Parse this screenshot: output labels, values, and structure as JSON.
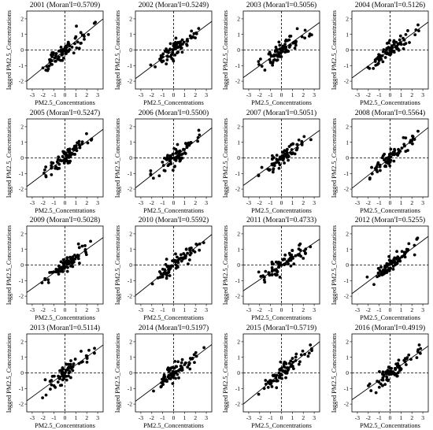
{
  "figure": {
    "xlabel": "PM2.5_Concentrations",
    "ylabel": "lagged PM2.5_Concentrations"
  },
  "chart_data": [
    {
      "type": "scatter",
      "title": "2001 (Moran'I=0.5709)",
      "year": 2001,
      "moran_i": 0.5709,
      "xlabel": "PM2.5_Concentrations",
      "ylabel": "lagged PM2.5_Concentrations",
      "xlim": [
        -3.5,
        3.5
      ],
      "ylim": [
        -2.5,
        2.5
      ],
      "xticks": [
        -3,
        -2,
        -1,
        0,
        1,
        2,
        3
      ],
      "yticks": [
        -2,
        -1,
        0,
        1,
        2
      ],
      "slope": 0.5709,
      "reference_lines": {
        "x": 0,
        "y": 0,
        "style": "dashed"
      },
      "seed": 11,
      "points_x": [],
      "points_y": []
    },
    {
      "type": "scatter",
      "title": "2002 (Moran'I=0.5249)",
      "year": 2002,
      "moran_i": 0.5249,
      "xlabel": "PM2.5_Concentrations",
      "ylabel": "lagged PM2.5_Concentrations",
      "xlim": [
        -3.5,
        3.5
      ],
      "ylim": [
        -2.5,
        2.5
      ],
      "xticks": [
        -3,
        -2,
        -1,
        0,
        1,
        2,
        3
      ],
      "yticks": [
        -2,
        -1,
        0,
        1,
        2
      ],
      "slope": 0.5249,
      "reference_lines": {
        "x": 0,
        "y": 0,
        "style": "dashed"
      },
      "seed": 23,
      "points_x": [],
      "points_y": []
    },
    {
      "type": "scatter",
      "title": "2003 (Moran'I=0.5056)",
      "year": 2003,
      "moran_i": 0.5056,
      "xlabel": "PM2.5_Concentrations",
      "ylabel": "lagged PM2.5_Concentrations",
      "xlim": [
        -3.5,
        3.5
      ],
      "ylim": [
        -2.5,
        2.5
      ],
      "xticks": [
        -3,
        -2,
        -1,
        0,
        1,
        2,
        3
      ],
      "yticks": [
        -2,
        -1,
        0,
        1,
        2
      ],
      "slope": 0.5056,
      "reference_lines": {
        "x": 0,
        "y": 0,
        "style": "dashed"
      },
      "seed": 37,
      "points_x": [],
      "points_y": []
    },
    {
      "type": "scatter",
      "title": "2004 (Moran'I=0.5126)",
      "year": 2004,
      "moran_i": 0.5126,
      "xlabel": "PM2.5_Concentrations",
      "ylabel": "lagged PM2.5_Concentrations",
      "xlim": [
        -3.5,
        3.5
      ],
      "ylim": [
        -2.5,
        2.5
      ],
      "xticks": [
        -3,
        -2,
        -1,
        0,
        1,
        2,
        3
      ],
      "yticks": [
        -2,
        -1,
        0,
        1,
        2
      ],
      "slope": 0.5126,
      "reference_lines": {
        "x": 0,
        "y": 0,
        "style": "dashed"
      },
      "seed": 41,
      "points_x": [],
      "points_y": []
    },
    {
      "type": "scatter",
      "title": "2005 (Moran'I=0.5247)",
      "year": 2005,
      "moran_i": 0.5247,
      "xlabel": "PM2.5_Concentrations",
      "ylabel": "lagged PM2.5_Concentrations",
      "xlim": [
        -3.5,
        3.5
      ],
      "ylim": [
        -2.5,
        2.5
      ],
      "xticks": [
        -3,
        -2,
        -1,
        0,
        1,
        2,
        3
      ],
      "yticks": [
        -2,
        -1,
        0,
        1,
        2
      ],
      "slope": 0.5247,
      "reference_lines": {
        "x": 0,
        "y": 0,
        "style": "dashed"
      },
      "seed": 53,
      "points_x": [],
      "points_y": []
    },
    {
      "type": "scatter",
      "title": "2006 (Moran'I=0.5500)",
      "year": 2006,
      "moran_i": 0.55,
      "xlabel": "PM2.5_Concentrations",
      "ylabel": "lagged PM2.5_Concentrations",
      "xlim": [
        -3.5,
        3.5
      ],
      "ylim": [
        -2.5,
        2.5
      ],
      "xticks": [
        -3,
        -2,
        -1,
        0,
        1,
        2,
        3
      ],
      "yticks": [
        -2,
        -1,
        0,
        1,
        2
      ],
      "slope": 0.55,
      "reference_lines": {
        "x": 0,
        "y": 0,
        "style": "dashed"
      },
      "seed": 67,
      "points_x": [],
      "points_y": []
    },
    {
      "type": "scatter",
      "title": "2007 (Moran'I=0.5051)",
      "year": 2007,
      "moran_i": 0.5051,
      "xlabel": "PM2.5_Concentrations",
      "ylabel": "lagged PM2.5_Concentrations",
      "xlim": [
        -3.5,
        3.5
      ],
      "ylim": [
        -2.5,
        2.5
      ],
      "xticks": [
        -3,
        -2,
        -1,
        0,
        1,
        2,
        3
      ],
      "yticks": [
        -2,
        -1,
        0,
        1,
        2
      ],
      "slope": 0.5051,
      "reference_lines": {
        "x": 0,
        "y": 0,
        "style": "dashed"
      },
      "seed": 71,
      "points_x": [],
      "points_y": []
    },
    {
      "type": "scatter",
      "title": "2008 (Moran'I=0.5564)",
      "year": 2008,
      "moran_i": 0.5564,
      "xlabel": "PM2.5_Concentrations",
      "ylabel": "lagged PM2.5_Concentrations",
      "xlim": [
        -3.5,
        3.5
      ],
      "ylim": [
        -2.5,
        2.5
      ],
      "xticks": [
        -3,
        -2,
        -1,
        0,
        1,
        2,
        3
      ],
      "yticks": [
        -2,
        -1,
        0,
        1,
        2
      ],
      "slope": 0.5564,
      "reference_lines": {
        "x": 0,
        "y": 0,
        "style": "dashed"
      },
      "seed": 83,
      "points_x": [],
      "points_y": []
    },
    {
      "type": "scatter",
      "title": "2009 (Moran'I=0.5028)",
      "year": 2009,
      "moran_i": 0.5028,
      "xlabel": "PM2.5_Concentrations",
      "ylabel": "lagged PM2.5_Concentrations",
      "xlim": [
        -3.5,
        3.5
      ],
      "ylim": [
        -2.5,
        2.5
      ],
      "xticks": [
        -3,
        -2,
        -1,
        0,
        1,
        2,
        3
      ],
      "yticks": [
        -2,
        -1,
        0,
        1,
        2
      ],
      "slope": 0.5028,
      "reference_lines": {
        "x": 0,
        "y": 0,
        "style": "dashed"
      },
      "seed": 97,
      "points_x": [],
      "points_y": []
    },
    {
      "type": "scatter",
      "title": "2010 (Moran'I=0.5592)",
      "year": 2010,
      "moran_i": 0.5592,
      "xlabel": "PM2.5_Concentrations",
      "ylabel": "lagged PM2.5_Concentrations",
      "xlim": [
        -3.5,
        3.5
      ],
      "ylim": [
        -2.5,
        2.5
      ],
      "xticks": [
        -3,
        -2,
        -1,
        0,
        1,
        2,
        3
      ],
      "yticks": [
        -2,
        -1,
        0,
        1,
        2
      ],
      "slope": 0.5592,
      "reference_lines": {
        "x": 0,
        "y": 0,
        "style": "dashed"
      },
      "seed": 101,
      "points_x": [],
      "points_y": []
    },
    {
      "type": "scatter",
      "title": "2011 (Moran'I=0.4733)",
      "year": 2011,
      "moran_i": 0.4733,
      "xlabel": "PM2.5_Concentrations",
      "ylabel": "lagged PM2.5_Concentrations",
      "xlim": [
        -3.5,
        3.5
      ],
      "ylim": [
        -2.5,
        2.5
      ],
      "xticks": [
        -3,
        -2,
        -1,
        0,
        1,
        2,
        3
      ],
      "yticks": [
        -2,
        -1,
        0,
        1,
        2
      ],
      "slope": 0.4733,
      "reference_lines": {
        "x": 0,
        "y": 0,
        "style": "dashed"
      },
      "seed": 113,
      "points_x": [],
      "points_y": []
    },
    {
      "type": "scatter",
      "title": "2012 (Moran'I=0.5255)",
      "year": 2012,
      "moran_i": 0.5255,
      "xlabel": "PM2.5_Concentrations",
      "ylabel": "lagged PM2.5_Concentrations",
      "xlim": [
        -3.5,
        3.5
      ],
      "ylim": [
        -2.5,
        2.5
      ],
      "xticks": [
        -3,
        -2,
        -1,
        0,
        1,
        2,
        3
      ],
      "yticks": [
        -2,
        -1,
        0,
        1,
        2
      ],
      "slope": 0.5255,
      "reference_lines": {
        "x": 0,
        "y": 0,
        "style": "dashed"
      },
      "seed": 127,
      "points_x": [],
      "points_y": []
    },
    {
      "type": "scatter",
      "title": "2013 (Moran'I=0.5114)",
      "year": 2013,
      "moran_i": 0.5114,
      "xlabel": "PM2.5_Concentrations",
      "ylabel": "lagged PM2.5_Concentrations",
      "xlim": [
        -3.5,
        3.5
      ],
      "ylim": [
        -2.5,
        2.5
      ],
      "xticks": [
        -3,
        -2,
        -1,
        0,
        1,
        2,
        3
      ],
      "yticks": [
        -2,
        -1,
        0,
        1,
        2
      ],
      "slope": 0.5114,
      "reference_lines": {
        "x": 0,
        "y": 0,
        "style": "dashed"
      },
      "seed": 131,
      "points_x": [],
      "points_y": []
    },
    {
      "type": "scatter",
      "title": "2014 (Moran'I=0.5197)",
      "year": 2014,
      "moran_i": 0.5197,
      "xlabel": "PM2.5_Concentrations",
      "ylabel": "lagged PM2.5_Concentrations",
      "xlim": [
        -3.5,
        3.5
      ],
      "ylim": [
        -2.5,
        2.5
      ],
      "xticks": [
        -3,
        -2,
        -1,
        0,
        1,
        2,
        3
      ],
      "yticks": [
        -2,
        -1,
        0,
        1,
        2
      ],
      "slope": 0.5197,
      "reference_lines": {
        "x": 0,
        "y": 0,
        "style": "dashed"
      },
      "seed": 139,
      "points_x": [],
      "points_y": []
    },
    {
      "type": "scatter",
      "title": "2015 (Moran'I=0.5719)",
      "year": 2015,
      "moran_i": 0.5719,
      "xlabel": "PM2.5_Concentrations",
      "ylabel": "lagged PM2.5_Concentrations",
      "xlim": [
        -3.5,
        3.5
      ],
      "ylim": [
        -2.5,
        2.5
      ],
      "xticks": [
        -3,
        -2,
        -1,
        0,
        1,
        2,
        3
      ],
      "yticks": [
        -2,
        -1,
        0,
        1,
        2
      ],
      "slope": 0.5719,
      "reference_lines": {
        "x": 0,
        "y": 0,
        "style": "dashed"
      },
      "seed": 149,
      "points_x": [],
      "points_y": []
    },
    {
      "type": "scatter",
      "title": "2016 (Moran'I=0.4919)",
      "year": 2016,
      "moran_i": 0.4919,
      "xlabel": "PM2.5_Concentrations",
      "ylabel": "lagged PM2.5_Concentrations",
      "xlim": [
        -3.5,
        3.5
      ],
      "ylim": [
        -2.5,
        2.5
      ],
      "xticks": [
        -3,
        -2,
        -1,
        0,
        1,
        2,
        3
      ],
      "yticks": [
        -2,
        -1,
        0,
        1,
        2
      ],
      "slope": 0.4919,
      "reference_lines": {
        "x": 0,
        "y": 0,
        "style": "dashed"
      },
      "seed": 157,
      "points_x": [],
      "points_y": []
    }
  ]
}
